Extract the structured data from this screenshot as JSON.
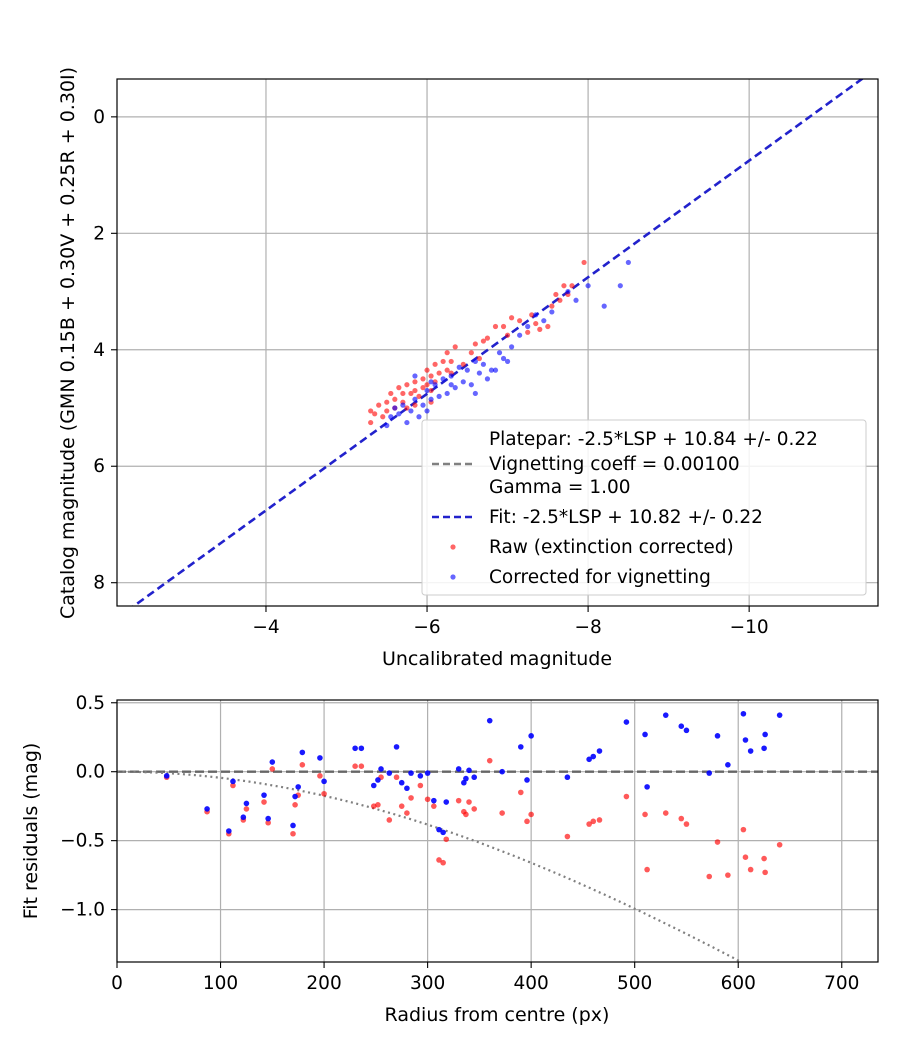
{
  "chart_data": [
    {
      "type": "scatter",
      "xlabel": "Uncalibrated magnitude",
      "ylabel": "Catalog magnitude (GMN 0.15B + 0.30V + 0.25R + 0.30I)",
      "xlim": [
        -2.15,
        -11.6
      ],
      "ylim": [
        8.4,
        -0.65
      ],
      "x_inverted": true,
      "y_inverted": true,
      "grid": true,
      "xticks": [
        -4,
        -6,
        -8,
        -10
      ],
      "xtick_labels": [
        "−4",
        "−6",
        "−8",
        "−10"
      ],
      "yticks": [
        0,
        2,
        4,
        6,
        8
      ],
      "ytick_labels": [
        "0",
        "2",
        "4",
        "6",
        "8"
      ],
      "legend_position": "lower-right",
      "legend": [
        {
          "label": "Platepar: -2.5*LSP + 10.84 +/- 0.22",
          "style": "none"
        },
        {
          "label": "Vignetting coeff = 0.00100",
          "style": "dashed",
          "color": "#808080"
        },
        {
          "label": "Gamma = 1.00",
          "style": "none"
        },
        {
          "label": "Fit: -2.5*LSP + 10.82 +/- 0.22",
          "style": "dashed",
          "color": "#2222cc"
        },
        {
          "label": "Raw (extinction corrected)",
          "style": "marker",
          "color": "#ff0000"
        },
        {
          "label": "Corrected for vignetting",
          "style": "marker",
          "color": "#0000ff"
        }
      ],
      "lines": [
        {
          "name": "Fit",
          "color": "#2222cc",
          "dashed": true,
          "x": [
            -2.15,
            -11.6
          ],
          "y": [
            8.61,
            -0.85
          ]
        }
      ],
      "series": [
        {
          "name": "Raw (extinction corrected)",
          "color": "#ff0000",
          "points": [
            [
              -5.3,
              5.05
            ],
            [
              -5.3,
              5.25
            ],
            [
              -5.35,
              5.1
            ],
            [
              -5.4,
              4.95
            ],
            [
              -5.45,
              5.15
            ],
            [
              -5.5,
              4.9
            ],
            [
              -5.5,
              5.05
            ],
            [
              -5.55,
              4.75
            ],
            [
              -5.6,
              5.0
            ],
            [
              -5.6,
              4.85
            ],
            [
              -5.65,
              4.65
            ],
            [
              -5.7,
              4.9
            ],
            [
              -5.7,
              4.75
            ],
            [
              -5.75,
              4.6
            ],
            [
              -5.75,
              5.0
            ],
            [
              -5.8,
              4.75
            ],
            [
              -5.85,
              4.7
            ],
            [
              -5.85,
              4.55
            ],
            [
              -5.9,
              4.8
            ],
            [
              -5.95,
              4.65
            ],
            [
              -5.95,
              4.5
            ],
            [
              -6.0,
              4.6
            ],
            [
              -6.0,
              4.35
            ],
            [
              -6.05,
              4.7
            ],
            [
              -6.05,
              4.45
            ],
            [
              -6.1,
              4.25
            ],
            [
              -6.1,
              4.55
            ],
            [
              -6.15,
              4.4
            ],
            [
              -6.2,
              4.2
            ],
            [
              -6.25,
              4.35
            ],
            [
              -6.25,
              4.05
            ],
            [
              -6.3,
              4.2
            ],
            [
              -6.35,
              3.95
            ],
            [
              -6.45,
              4.25
            ],
            [
              -6.55,
              4.05
            ],
            [
              -6.6,
              3.9
            ],
            [
              -6.65,
              4.15
            ],
            [
              -6.7,
              3.85
            ],
            [
              -6.75,
              3.8
            ],
            [
              -6.85,
              3.6
            ],
            [
              -6.95,
              3.6
            ],
            [
              -7.0,
              3.75
            ],
            [
              -7.05,
              3.45
            ],
            [
              -7.15,
              3.5
            ],
            [
              -7.25,
              3.7
            ],
            [
              -7.3,
              3.4
            ],
            [
              -7.35,
              3.55
            ],
            [
              -7.4,
              3.65
            ],
            [
              -7.5,
              3.6
            ],
            [
              -7.55,
              3.25
            ],
            [
              -7.6,
              3.05
            ],
            [
              -7.65,
              3.15
            ],
            [
              -7.7,
              2.9
            ],
            [
              -7.75,
              3.05
            ],
            [
              -7.8,
              2.9
            ],
            [
              -7.95,
              2.5
            ],
            [
              -6.3,
              4.4
            ],
            [
              -6.05,
              4.9
            ],
            [
              -5.85,
              4.95
            ]
          ]
        },
        {
          "name": "Corrected for vignetting",
          "color": "#0000ff",
          "points": [
            [
              -5.5,
              5.3
            ],
            [
              -5.55,
              5.15
            ],
            [
              -5.6,
              5.0
            ],
            [
              -5.65,
              5.1
            ],
            [
              -5.7,
              4.95
            ],
            [
              -5.75,
              5.25
            ],
            [
              -5.8,
              5.05
            ],
            [
              -5.85,
              4.85
            ],
            [
              -5.9,
              5.15
            ],
            [
              -5.95,
              4.95
            ],
            [
              -6.0,
              4.7
            ],
            [
              -6.0,
              5.05
            ],
            [
              -6.05,
              4.85
            ],
            [
              -6.1,
              4.6
            ],
            [
              -6.15,
              4.8
            ],
            [
              -6.2,
              4.5
            ],
            [
              -6.25,
              4.75
            ],
            [
              -6.3,
              4.45
            ],
            [
              -6.35,
              4.65
            ],
            [
              -6.4,
              4.3
            ],
            [
              -6.45,
              4.55
            ],
            [
              -6.5,
              4.35
            ],
            [
              -6.55,
              4.6
            ],
            [
              -6.6,
              4.2
            ],
            [
              -6.65,
              4.4
            ],
            [
              -6.7,
              4.25
            ],
            [
              -6.75,
              4.5
            ],
            [
              -6.85,
              4.35
            ],
            [
              -6.9,
              4.05
            ],
            [
              -6.95,
              4.15
            ],
            [
              -7.0,
              4.2
            ],
            [
              -7.05,
              3.95
            ],
            [
              -7.15,
              3.75
            ],
            [
              -7.25,
              3.6
            ],
            [
              -7.35,
              3.4
            ],
            [
              -7.45,
              3.5
            ],
            [
              -7.55,
              3.35
            ],
            [
              -7.75,
              3.0
            ],
            [
              -7.85,
              3.15
            ],
            [
              -8.0,
              2.9
            ],
            [
              -8.2,
              3.25
            ],
            [
              -8.4,
              2.9
            ],
            [
              -8.5,
              2.5
            ],
            [
              -6.3,
              4.6
            ],
            [
              -6.6,
              4.75
            ],
            [
              -6.8,
              4.35
            ],
            [
              -5.85,
              4.45
            ],
            [
              -6.05,
              4.55
            ]
          ]
        }
      ]
    },
    {
      "type": "scatter",
      "xlabel": "Radius from centre (px)",
      "ylabel": "Fit residuals (mag)",
      "xlim": [
        0,
        735
      ],
      "ylim": [
        -1.38,
        0.52
      ],
      "grid": true,
      "xticks": [
        0,
        100,
        200,
        300,
        400,
        500,
        600,
        700
      ],
      "xtick_labels": [
        "0",
        "100",
        "200",
        "300",
        "400",
        "500",
        "600",
        "700"
      ],
      "yticks": [
        0.5,
        0.0,
        -0.5,
        -1.0
      ],
      "ytick_labels": [
        "0.5",
        "0.0",
        "−0.5",
        "−1.0"
      ],
      "reference_line": {
        "y": 0.0,
        "color": "#666666",
        "dashed": true
      },
      "vignetting_curve": {
        "color": "#808080",
        "dotted": true,
        "coeff": 0.001
      },
      "series": [
        {
          "name": "Raw (extinction corrected)",
          "color": "#ff0000",
          "points": [
            [
              48,
              -0.04
            ],
            [
              87,
              -0.29
            ],
            [
              108,
              -0.45
            ],
            [
              112,
              -0.1
            ],
            [
              122,
              -0.35
            ],
            [
              125,
              -0.27
            ],
            [
              142,
              -0.22
            ],
            [
              146,
              -0.37
            ],
            [
              150,
              0.02
            ],
            [
              170,
              -0.45
            ],
            [
              172,
              -0.24
            ],
            [
              175,
              -0.17
            ],
            [
              179,
              0.05
            ],
            [
              196,
              -0.03
            ],
            [
              200,
              -0.16
            ],
            [
              230,
              0.04
            ],
            [
              236,
              0.04
            ],
            [
              248,
              -0.25
            ],
            [
              252,
              -0.24
            ],
            [
              255,
              -0.04
            ],
            [
              263,
              -0.35
            ],
            [
              270,
              -0.04
            ],
            [
              275,
              -0.25
            ],
            [
              280,
              -0.3
            ],
            [
              284,
              -0.19
            ],
            [
              293,
              -0.1
            ],
            [
              300,
              -0.2
            ],
            [
              306,
              -0.25
            ],
            [
              311,
              -0.64
            ],
            [
              315,
              -0.66
            ],
            [
              318,
              -0.49
            ],
            [
              330,
              -0.21
            ],
            [
              335,
              -0.29
            ],
            [
              337,
              -0.31
            ],
            [
              340,
              -0.22
            ],
            [
              345,
              -0.27
            ],
            [
              360,
              0.08
            ],
            [
              372,
              -0.3
            ],
            [
              390,
              -0.15
            ],
            [
              396,
              -0.36
            ],
            [
              400,
              -0.31
            ],
            [
              435,
              -0.47
            ],
            [
              456,
              -0.38
            ],
            [
              460,
              -0.36
            ],
            [
              466,
              -0.35
            ],
            [
              492,
              -0.18
            ],
            [
              510,
              -0.31
            ],
            [
              512,
              -0.71
            ],
            [
              530,
              -0.3
            ],
            [
              545,
              -0.34
            ],
            [
              550,
              -0.38
            ],
            [
              572,
              -0.76
            ],
            [
              580,
              -0.51
            ],
            [
              590,
              -0.75
            ],
            [
              605,
              -0.42
            ],
            [
              607,
              -0.62
            ],
            [
              612,
              -0.71
            ],
            [
              625,
              -0.63
            ],
            [
              626,
              -0.73
            ],
            [
              640,
              -0.53
            ]
          ]
        },
        {
          "name": "Corrected for vignetting",
          "color": "#0000ff",
          "points": [
            [
              48,
              -0.03
            ],
            [
              87,
              -0.27
            ],
            [
              108,
              -0.43
            ],
            [
              112,
              -0.07
            ],
            [
              122,
              -0.33
            ],
            [
              125,
              -0.23
            ],
            [
              142,
              -0.17
            ],
            [
              146,
              -0.34
            ],
            [
              150,
              0.07
            ],
            [
              170,
              -0.39
            ],
            [
              172,
              -0.18
            ],
            [
              175,
              -0.11
            ],
            [
              179,
              0.14
            ],
            [
              196,
              0.1
            ],
            [
              200,
              -0.07
            ],
            [
              230,
              0.17
            ],
            [
              236,
              0.17
            ],
            [
              248,
              -0.1
            ],
            [
              252,
              -0.06
            ],
            [
              255,
              0.02
            ],
            [
              263,
              -0.01
            ],
            [
              270,
              0.18
            ],
            [
              275,
              -0.08
            ],
            [
              280,
              -0.12
            ],
            [
              284,
              -0.01
            ],
            [
              293,
              -0.03
            ],
            [
              300,
              -0.01
            ],
            [
              306,
              -0.21
            ],
            [
              311,
              -0.42
            ],
            [
              315,
              -0.44
            ],
            [
              318,
              -0.22
            ],
            [
              330,
              0.02
            ],
            [
              335,
              -0.08
            ],
            [
              337,
              -0.05
            ],
            [
              340,
              0.01
            ],
            [
              345,
              -0.04
            ],
            [
              360,
              0.37
            ],
            [
              372,
              0.0
            ],
            [
              390,
              0.18
            ],
            [
              396,
              -0.06
            ],
            [
              400,
              0.26
            ],
            [
              435,
              -0.04
            ],
            [
              456,
              0.09
            ],
            [
              460,
              0.11
            ],
            [
              466,
              0.15
            ],
            [
              492,
              0.36
            ],
            [
              510,
              0.27
            ],
            [
              512,
              -0.11
            ],
            [
              530,
              0.41
            ],
            [
              545,
              0.33
            ],
            [
              550,
              0.3
            ],
            [
              572,
              -0.01
            ],
            [
              580,
              0.26
            ],
            [
              590,
              0.05
            ],
            [
              605,
              0.42
            ],
            [
              607,
              0.23
            ],
            [
              612,
              0.15
            ],
            [
              625,
              0.17
            ],
            [
              626,
              0.27
            ],
            [
              640,
              0.41
            ]
          ]
        }
      ]
    }
  ]
}
